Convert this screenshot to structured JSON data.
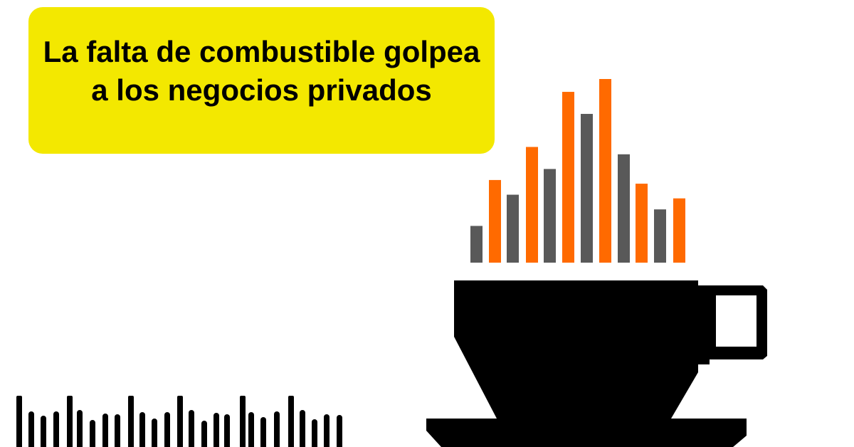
{
  "headline": "La falta de combustible golpea a los negocios privados",
  "colors": {
    "banner": "#f3e800",
    "orange": "#ff6a00",
    "gray": "#595959",
    "black": "#000000"
  },
  "icons": [
    "coffee-cup-icon",
    "steam-bars-icon",
    "audio-waveform-icon"
  ],
  "steam_bar_levels": [
    0.2,
    0.45,
    0.37,
    0.63,
    0.51,
    0.93,
    0.81,
    1.0,
    0.59,
    0.43,
    0.29,
    0.35
  ]
}
